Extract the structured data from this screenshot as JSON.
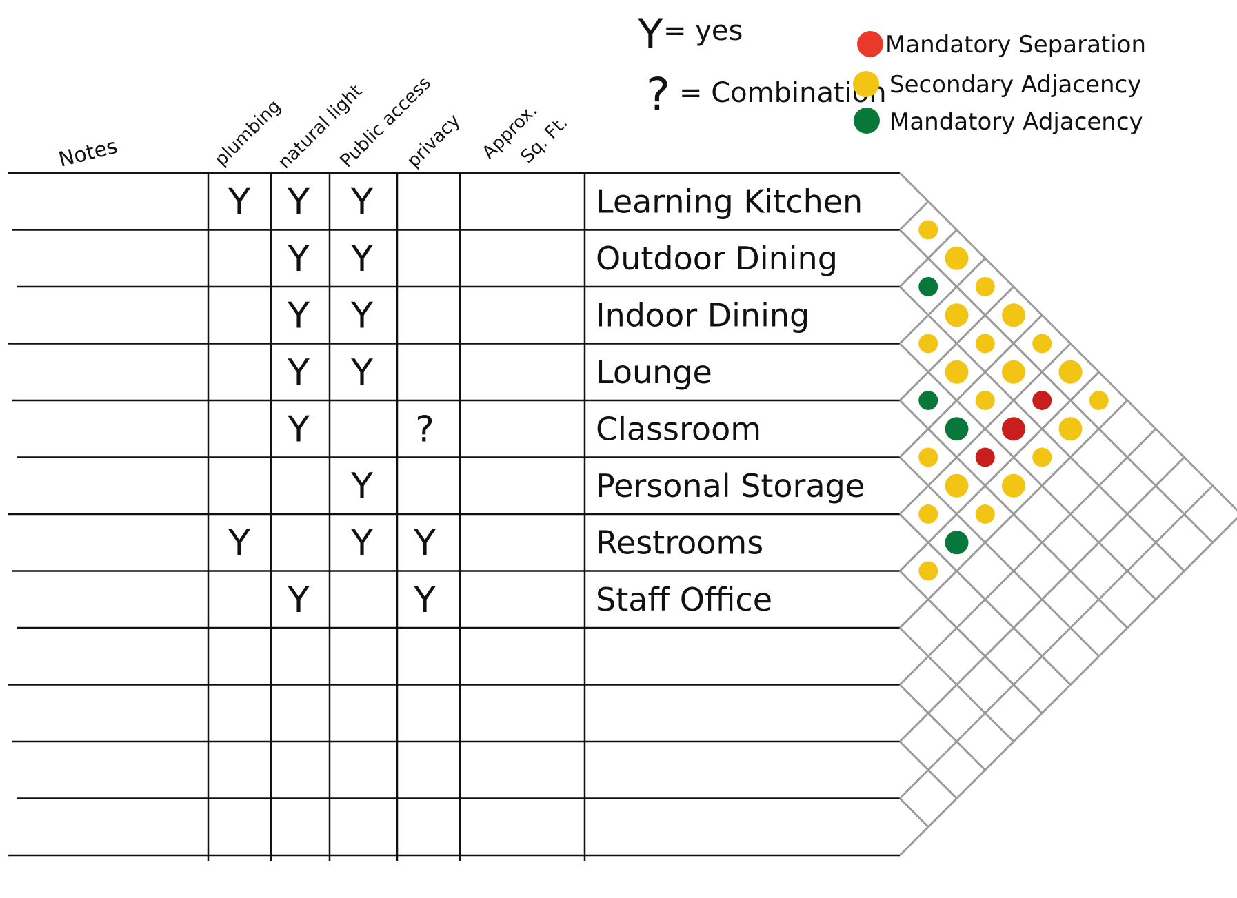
{
  "columns": {
    "notes": "Notes",
    "plumbing": "plumbing",
    "natural_light": "natural light",
    "public_access": "Public access",
    "privacy": "privacy",
    "sqft_1": "Approx.",
    "sqft_2": "Sq. Ft."
  },
  "key": {
    "yes_symbol": "Y",
    "yes_text": "= yes",
    "combo_symbol": "?",
    "combo_text": "= Combination"
  },
  "legend": [
    {
      "label": "Mandatory Separation",
      "color": "#e8392a",
      "type": "separation"
    },
    {
      "label": "Secondary Adjacency",
      "color": "#f2c414",
      "type": "secondary"
    },
    {
      "label": "Mandatory Adjacency",
      "color": "#08783a",
      "type": "mandatory"
    }
  ],
  "rows": [
    {
      "name": "Learning Kitchen",
      "plumbing": "Y",
      "natural_light": "Y",
      "public_access": "Y",
      "privacy": ""
    },
    {
      "name": "Outdoor Dining",
      "plumbing": "",
      "natural_light": "Y",
      "public_access": "Y",
      "privacy": ""
    },
    {
      "name": "Indoor Dining",
      "plumbing": "",
      "natural_light": "Y",
      "public_access": "Y",
      "privacy": ""
    },
    {
      "name": "Lounge",
      "plumbing": "",
      "natural_light": "Y",
      "public_access": "Y",
      "privacy": ""
    },
    {
      "name": "Classroom",
      "plumbing": "",
      "natural_light": "Y",
      "public_access": "",
      "privacy": "?"
    },
    {
      "name": "Personal Storage",
      "plumbing": "",
      "natural_light": "",
      "public_access": "Y",
      "privacy": ""
    },
    {
      "name": "Restrooms",
      "plumbing": "Y",
      "natural_light": "",
      "public_access": "Y",
      "privacy": "Y"
    },
    {
      "name": "Staff Office",
      "plumbing": "",
      "natural_light": "Y",
      "public_access": "",
      "privacy": "Y"
    },
    {
      "name": "",
      "plumbing": "",
      "natural_light": "",
      "public_access": "",
      "privacy": ""
    },
    {
      "name": "",
      "plumbing": "",
      "natural_light": "",
      "public_access": "",
      "privacy": ""
    },
    {
      "name": "",
      "plumbing": "",
      "natural_light": "",
      "public_access": "",
      "privacy": ""
    },
    {
      "name": "",
      "plumbing": "",
      "natural_light": "",
      "public_access": "",
      "privacy": ""
    }
  ],
  "adjacency": [
    {
      "rooms": [
        1,
        2
      ],
      "type": "secondary"
    },
    {
      "rooms": [
        2,
        3
      ],
      "type": "mandatory"
    },
    {
      "rooms": [
        1,
        3
      ],
      "type": "secondary"
    },
    {
      "rooms": [
        3,
        4
      ],
      "type": "secondary"
    },
    {
      "rooms": [
        2,
        4
      ],
      "type": "secondary"
    },
    {
      "rooms": [
        4,
        5
      ],
      "type": "mandatory"
    },
    {
      "rooms": [
        1,
        4
      ],
      "type": "secondary"
    },
    {
      "rooms": [
        3,
        5
      ],
      "type": "secondary"
    },
    {
      "rooms": [
        4,
        6
      ],
      "type": "mandatory"
    },
    {
      "rooms": [
        2,
        5
      ],
      "type": "secondary"
    },
    {
      "rooms": [
        3,
        6
      ],
      "type": "secondary"
    },
    {
      "rooms": [
        4,
        7
      ],
      "type": "separation"
    },
    {
      "rooms": [
        1,
        5
      ],
      "type": "secondary"
    },
    {
      "rooms": [
        2,
        6
      ],
      "type": "secondary"
    },
    {
      "rooms": [
        3,
        7
      ],
      "type": "separation"
    },
    {
      "rooms": [
        4,
        8
      ],
      "type": "secondary"
    },
    {
      "rooms": [
        5,
        6
      ],
      "type": "secondary"
    },
    {
      "rooms": [
        2,
        7
      ],
      "type": "separation"
    },
    {
      "rooms": [
        3,
        8
      ],
      "type": "secondary"
    },
    {
      "rooms": [
        1,
        6
      ],
      "type": "secondary"
    },
    {
      "rooms": [
        2,
        8
      ],
      "type": "secondary"
    },
    {
      "rooms": [
        5,
        7
      ],
      "type": "secondary"
    },
    {
      "rooms": [
        6,
        7
      ],
      "type": "secondary"
    },
    {
      "rooms": [
        1,
        7
      ],
      "type": "secondary"
    },
    {
      "rooms": [
        6,
        8
      ],
      "type": "mandatory"
    },
    {
      "rooms": [
        5,
        8
      ],
      "type": "secondary"
    },
    {
      "rooms": [
        7,
        8
      ],
      "type": "secondary"
    },
    {
      "rooms": [
        1,
        8
      ],
      "type": "secondary"
    }
  ]
}
